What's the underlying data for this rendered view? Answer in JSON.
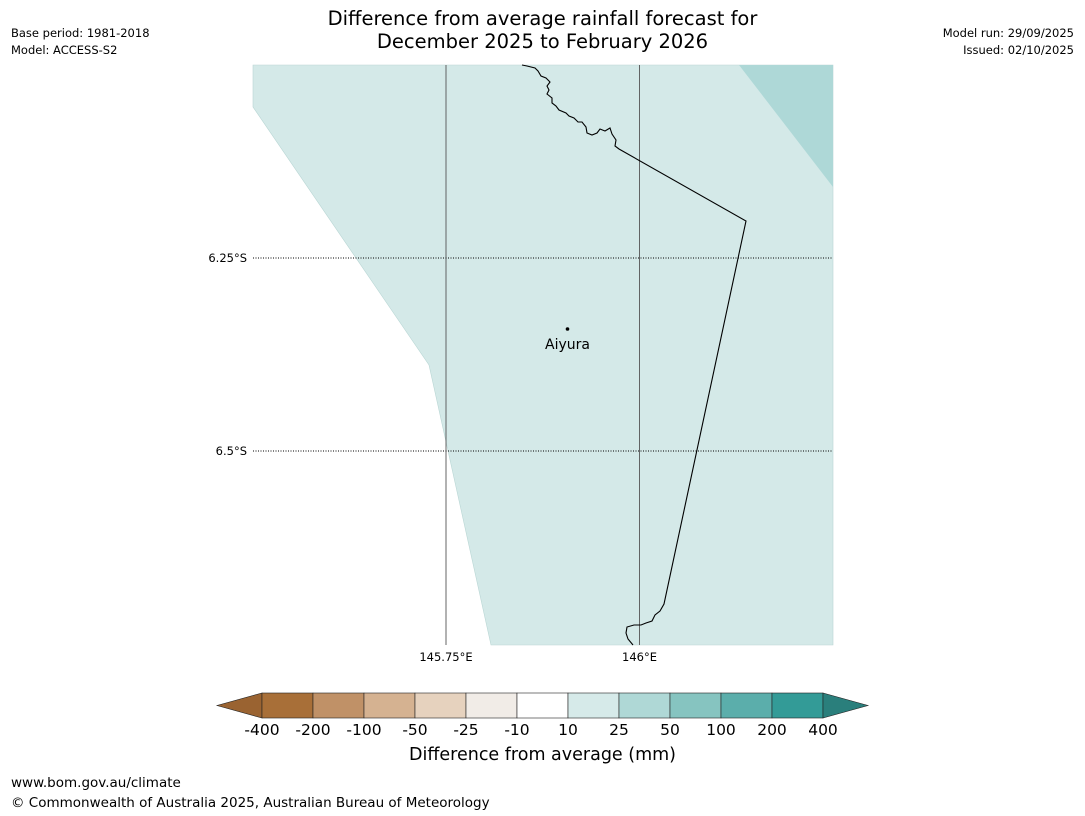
{
  "header": {
    "base_period": "Base period: 1981-2018",
    "model": "Model: ACCESS-S2",
    "model_run": "Model run: 29/09/2025",
    "issued": "Issued: 02/10/2025",
    "title_line1": "Difference from average rainfall forecast for",
    "title_line2": "December 2025 to February 2026"
  },
  "map": {
    "latitude_labels": [
      "6.25°S",
      "6.5°S"
    ],
    "longitude_labels": [
      "145.75°E",
      "146°E"
    ],
    "place": {
      "name": "Aiyura"
    },
    "colors": {
      "region_10_25": "#d4e9e8",
      "region_25_50": "#aed8d7",
      "border": "#000000",
      "gridline": "#555555"
    }
  },
  "colorbar": {
    "title": "Difference from average (mm)",
    "tick_labels": [
      "-400",
      "-200",
      "-100",
      "-50",
      "-25",
      "-10",
      "10",
      "25",
      "50",
      "100",
      "200",
      "400"
    ],
    "segment_colors": [
      "#a86f38",
      "#c09167",
      "#d5b291",
      "#e6d2be",
      "#f1ece7",
      "#ffffff",
      "#d6eae9",
      "#afd8d6",
      "#86c4c0",
      "#5baeab",
      "#339b97"
    ],
    "extend_low_color": "#9a6331",
    "extend_high_color": "#2a7f7c"
  },
  "footer": {
    "url": "www.bom.gov.au/climate",
    "copyright": "© Commonwealth of Australia 2025, Australian Bureau of Meteorology"
  }
}
